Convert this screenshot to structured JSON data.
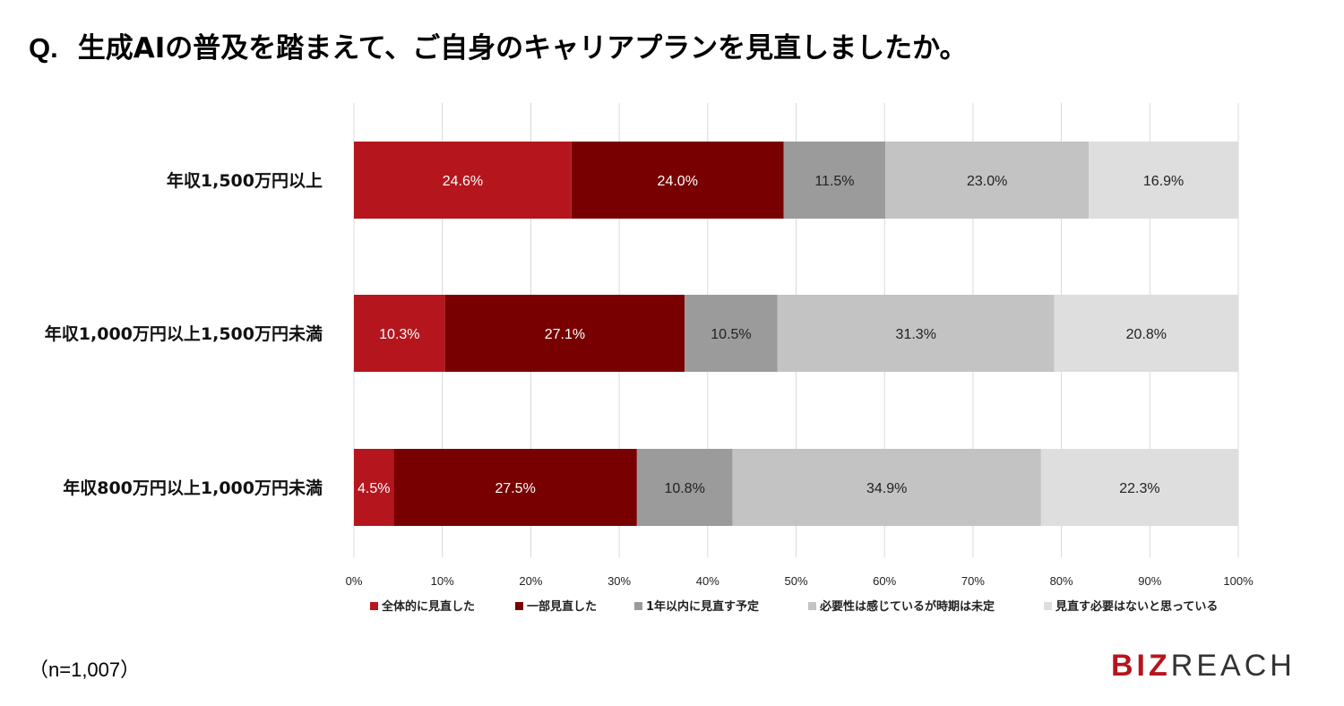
{
  "title": {
    "prefix": "Q.",
    "text": "生成AIの普及を踏まえて、ご自身のキャリアプランを見直しましたか。"
  },
  "note": "（n=1,007）",
  "logo": {
    "part1": "BIZ",
    "part2": "REAC",
    "part3": "H"
  },
  "colors": [
    "#b5161d",
    "#780000",
    "#9b9b9b",
    "#c3c3c3",
    "#dedede"
  ],
  "label_colors": [
    "#ffffff",
    "#ffffff",
    "#222222",
    "#222222",
    "#222222"
  ],
  "chart_data": {
    "type": "bar",
    "orientation": "horizontal",
    "stacked": true,
    "xlim": [
      0,
      100
    ],
    "xticks": [
      "0%",
      "10%",
      "20%",
      "30%",
      "40%",
      "50%",
      "60%",
      "70%",
      "80%",
      "90%",
      "100%"
    ],
    "grid": true,
    "legend_position": "bottom",
    "categories": [
      "年収1,500万円以上",
      "年収1,000万円以上1,500万円未満",
      "年収800万円以上1,000万円未満"
    ],
    "series": [
      {
        "name": "全体的に見直した",
        "values": [
          24.6,
          10.3,
          4.5
        ],
        "labels": [
          "24.6%",
          "10.3%",
          "4.5%"
        ]
      },
      {
        "name": "一部見直した",
        "values": [
          24.0,
          27.1,
          27.5
        ],
        "labels": [
          "24.0%",
          "27.1%",
          "27.5%"
        ]
      },
      {
        "name": "1年以内に見直す予定",
        "values": [
          11.5,
          10.5,
          10.8
        ],
        "labels": [
          "11.5%",
          "10.5%",
          "10.8%"
        ]
      },
      {
        "name": "必要性は感じているが時期は未定",
        "values": [
          23.0,
          31.3,
          34.9
        ],
        "labels": [
          "23.0%",
          "31.3%",
          "34.9%"
        ]
      },
      {
        "name": "見直す必要はないと思っている",
        "values": [
          16.9,
          20.8,
          22.3
        ],
        "labels": [
          "16.9%",
          "20.8%",
          "22.3%"
        ]
      }
    ]
  }
}
